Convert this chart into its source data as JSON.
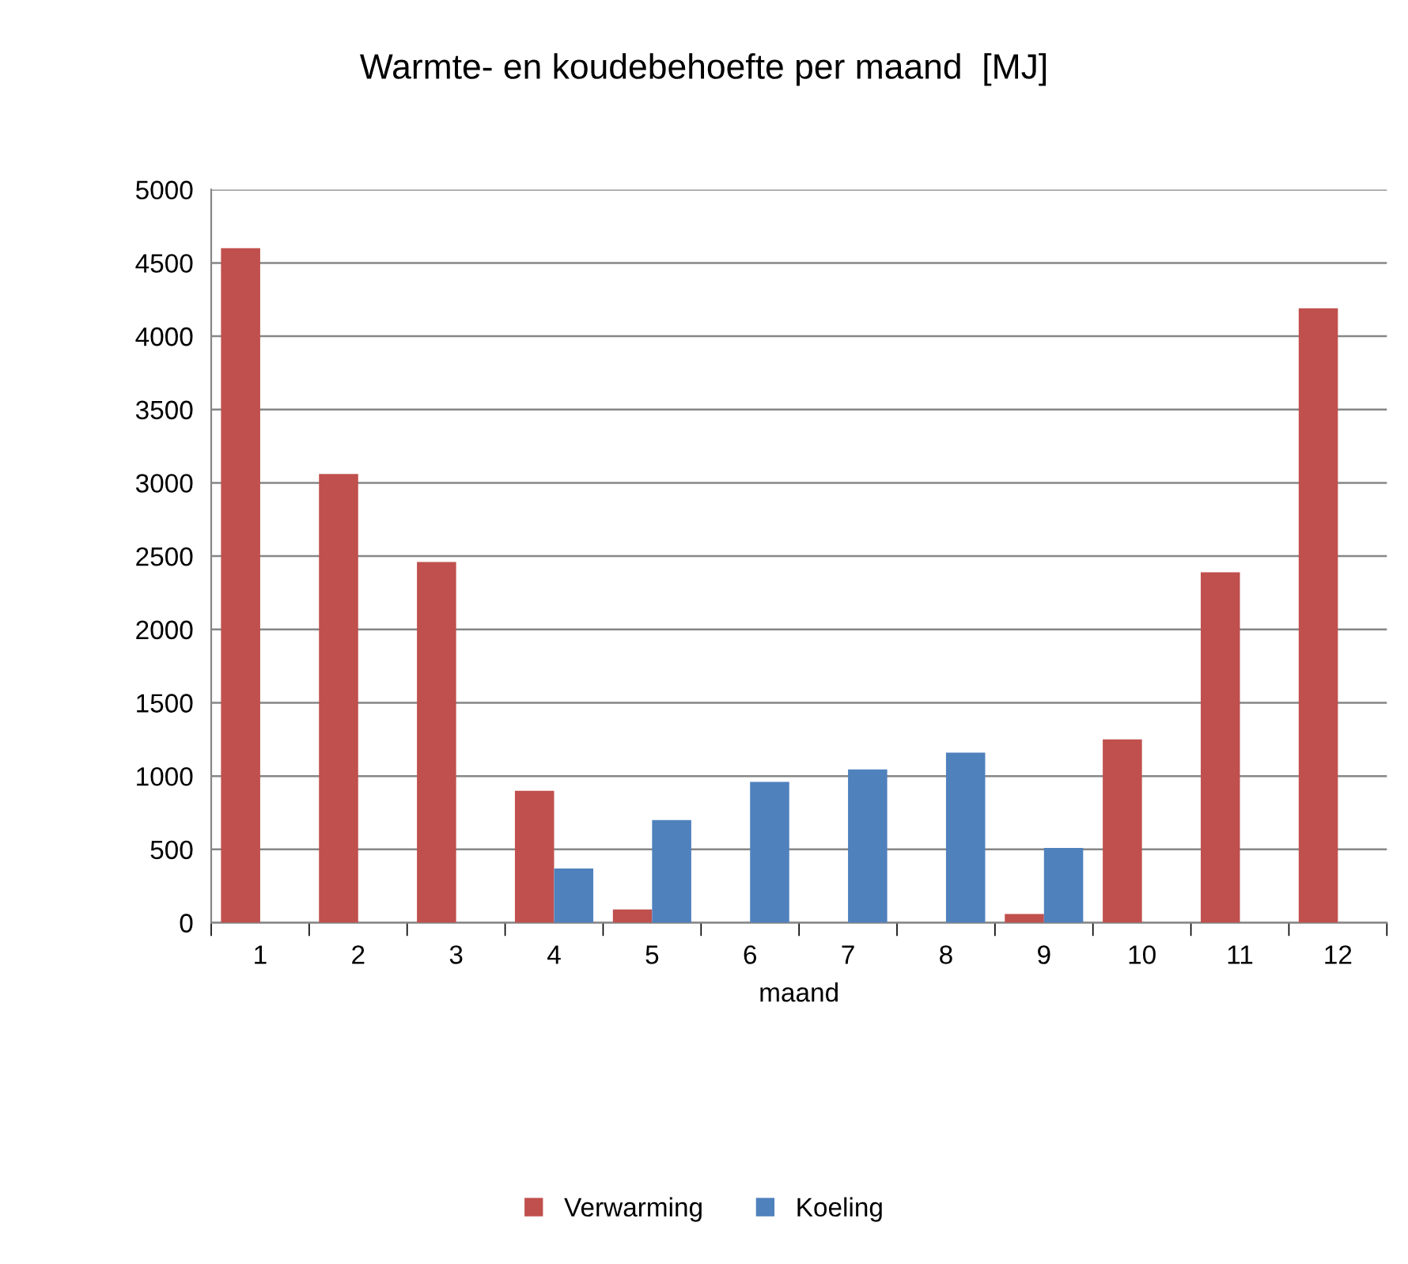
{
  "chart_data": {
    "type": "bar",
    "title": "Warmte- en koudebehoefte per maand  [MJ]",
    "xlabel": "maand",
    "categories": [
      "1",
      "2",
      "3",
      "4",
      "5",
      "6",
      "7",
      "8",
      "9",
      "10",
      "11",
      "12"
    ],
    "series": [
      {
        "name": "Verwarming",
        "color": "#c0504d",
        "values": [
          4600,
          3060,
          2460,
          900,
          90,
          null,
          null,
          null,
          60,
          1250,
          2390,
          4190
        ]
      },
      {
        "name": "Koeling",
        "color": "#4f81bd",
        "values": [
          null,
          null,
          null,
          370,
          700,
          960,
          1045,
          1160,
          510,
          null,
          null,
          null
        ]
      }
    ],
    "ylim": [
      0,
      5000
    ],
    "yticks": [
      0,
      500,
      1000,
      1500,
      2000,
      2500,
      3000,
      3500,
      4000,
      4500,
      5000
    ],
    "grid": "y",
    "legend": "bottom"
  }
}
